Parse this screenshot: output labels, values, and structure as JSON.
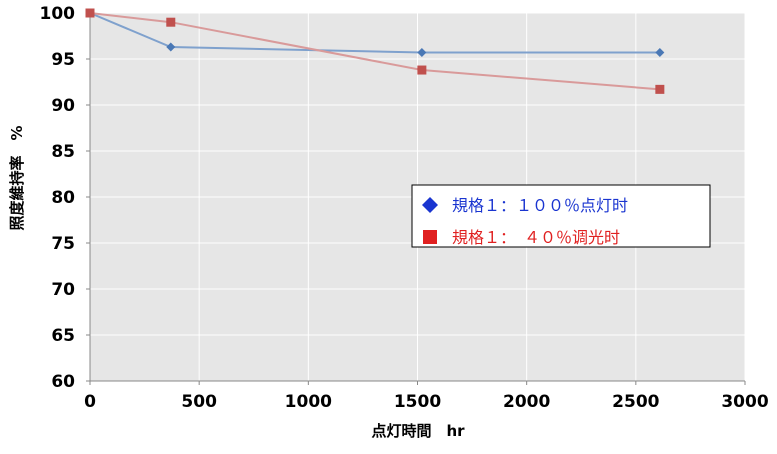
{
  "chart_data": {
    "type": "line",
    "xlabel": "点灯時間　hr",
    "ylabel": "照度維持率　%",
    "xlim": [
      0,
      3000
    ],
    "ylim": [
      60,
      100
    ],
    "x_ticks": [
      0,
      500,
      1000,
      1500,
      2000,
      2500,
      3000
    ],
    "y_ticks": [
      60,
      65,
      70,
      75,
      80,
      85,
      90,
      95,
      100
    ],
    "grid": true,
    "legend_position": "right",
    "series": [
      {
        "name": "規格１：１００％点灯时",
        "color": "#7fa1cd",
        "marker": "diamond",
        "marker_color": "#4a78b5",
        "legend_color": "#1a35d0",
        "x": [
          0,
          370,
          1520,
          2610
        ],
        "y": [
          100,
          96.3,
          95.7,
          95.7
        ]
      },
      {
        "name": "規格１：　４０％调光时",
        "color": "#d99a9a",
        "marker": "square",
        "marker_color": "#c0504d",
        "legend_color": "#e02020",
        "x": [
          0,
          370,
          1520,
          2610
        ],
        "y": [
          100,
          99,
          93.8,
          91.7
        ]
      }
    ]
  }
}
